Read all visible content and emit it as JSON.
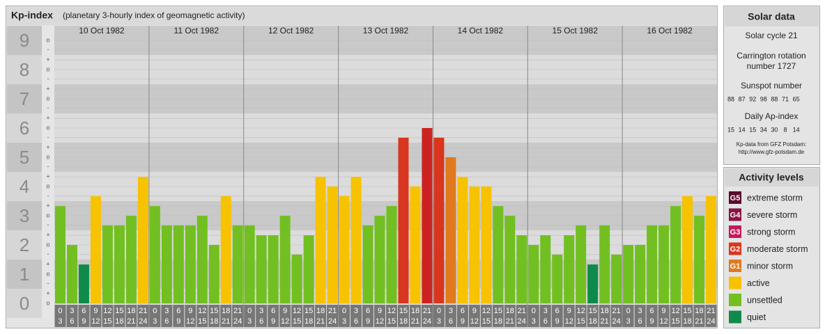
{
  "header": {
    "title": "Kp-index",
    "subtitle": "(planetary 3-hourly index of geomagnetic activity)"
  },
  "chart_data": {
    "type": "bar",
    "days": [
      "10 Oct 1982",
      "11 Oct 1982",
      "12 Oct 1982",
      "13 Oct 1982",
      "14 Oct 1982",
      "15 Oct 1982",
      "16 Oct 1982"
    ],
    "hour_labels": [
      [
        "0",
        "3"
      ],
      [
        "3",
        "6"
      ],
      [
        "6",
        "9"
      ],
      [
        "9",
        "12"
      ],
      [
        "12",
        "15"
      ],
      [
        "15",
        "18"
      ],
      [
        "18",
        "21"
      ],
      [
        "21",
        "24"
      ]
    ],
    "values": [
      3.33,
      2,
      1.33,
      3.67,
      2.67,
      2.67,
      3,
      4.33,
      3.33,
      2.67,
      2.67,
      2.67,
      3,
      2,
      3.67,
      2.67,
      2.67,
      2.33,
      2.33,
      3,
      1.67,
      2.33,
      4.33,
      4,
      3.67,
      4.33,
      2.67,
      3,
      3.33,
      5.67,
      4,
      6,
      5.67,
      5,
      4.33,
      4,
      4,
      3.33,
      3,
      2.33,
      2,
      2.33,
      1.67,
      2.33,
      2.67,
      1.33,
      2.67,
      1.67,
      2,
      2,
      2.67,
      2.67,
      3.33,
      3.67,
      3,
      3.67
    ],
    "bar_colors": [
      "#72bf22",
      "#72bf22",
      "#0f8a4a",
      "#f7c200",
      "#72bf22",
      "#72bf22",
      "#72bf22",
      "#f7c200",
      "#72bf22",
      "#72bf22",
      "#72bf22",
      "#72bf22",
      "#72bf22",
      "#72bf22",
      "#f7c200",
      "#72bf22",
      "#72bf22",
      "#72bf22",
      "#72bf22",
      "#72bf22",
      "#72bf22",
      "#72bf22",
      "#f7c200",
      "#f7c200",
      "#f7c200",
      "#f7c200",
      "#72bf22",
      "#72bf22",
      "#72bf22",
      "#d8361e",
      "#f7c200",
      "#cc2222",
      "#d8361e",
      "#e07a1e",
      "#f7c200",
      "#f7c200",
      "#f7c200",
      "#72bf22",
      "#72bf22",
      "#72bf22",
      "#72bf22",
      "#72bf22",
      "#72bf22",
      "#72bf22",
      "#72bf22",
      "#0f8a4a",
      "#72bf22",
      "#72bf22",
      "#72bf22",
      "#72bf22",
      "#72bf22",
      "#72bf22",
      "#72bf22",
      "#f7c200",
      "#72bf22",
      "#f7c200"
    ],
    "ylim": [
      -0.5,
      9.5
    ],
    "yticks": [
      0,
      1,
      2,
      3,
      4,
      5,
      6,
      7,
      8,
      9
    ],
    "minor_yticks": [
      {
        "value": 0,
        "label": "o"
      },
      {
        "value": 0.33,
        "label": "+"
      },
      {
        "value": 0.67,
        "label": "-"
      },
      {
        "value": 1,
        "label": "o"
      },
      {
        "value": 1.33,
        "label": "+"
      },
      {
        "value": 1.67,
        "label": "-"
      },
      {
        "value": 2,
        "label": "o"
      },
      {
        "value": 2.33,
        "label": "+"
      },
      {
        "value": 2.67,
        "label": "-"
      },
      {
        "value": 3,
        "label": "o"
      },
      {
        "value": 3.33,
        "label": "+"
      },
      {
        "value": 3.67,
        "label": "-"
      },
      {
        "value": 4,
        "label": "o"
      },
      {
        "value": 4.33,
        "label": "+"
      },
      {
        "value": 4.67,
        "label": "-"
      },
      {
        "value": 5,
        "label": "o"
      },
      {
        "value": 5.33,
        "label": "+"
      },
      {
        "value": 5.67,
        "label": "-"
      },
      {
        "value": 6,
        "label": "o"
      },
      {
        "value": 6.33,
        "label": "+"
      },
      {
        "value": 6.67,
        "label": "-"
      },
      {
        "value": 7,
        "label": "o"
      },
      {
        "value": 7.33,
        "label": "+"
      },
      {
        "value": 7.67,
        "label": "-"
      },
      {
        "value": 8,
        "label": "o"
      },
      {
        "value": 8.33,
        "label": "+"
      },
      {
        "value": 8.67,
        "label": "-"
      },
      {
        "value": 9,
        "label": "o"
      }
    ],
    "legend_title": "Activity levels",
    "levels": [
      {
        "code": "G5",
        "name": "extreme storm",
        "color": "#5a0a2e"
      },
      {
        "code": "G4",
        "name": "severe storm",
        "color": "#8a1444"
      },
      {
        "code": "G3",
        "name": "strong storm",
        "color": "#c21a5c"
      },
      {
        "code": "G2",
        "name": "moderate storm",
        "color": "#d8361e"
      },
      {
        "code": "G1",
        "name": "minor storm",
        "color": "#e07a1e"
      },
      {
        "name": "active",
        "color": "#f7c200"
      },
      {
        "name": "unsettled",
        "color": "#72bf22"
      },
      {
        "name": "quiet",
        "color": "#0f8a4a"
      }
    ]
  },
  "solar_data": {
    "title": "Solar data",
    "cycle": "Solar cycle 21",
    "rotation": [
      "Carrington rotation",
      "number 1727"
    ],
    "sunspot_title": "Sunspot number",
    "sunspot": [
      88,
      87,
      92,
      98,
      88,
      71,
      65
    ],
    "ap_title": "Daily Ap-index",
    "ap": [
      15,
      14,
      15,
      34,
      30,
      8,
      14
    ],
    "credit": [
      "Kp-data from GFZ Potsdam:",
      "http://www.gfz-potsdam.de"
    ]
  }
}
